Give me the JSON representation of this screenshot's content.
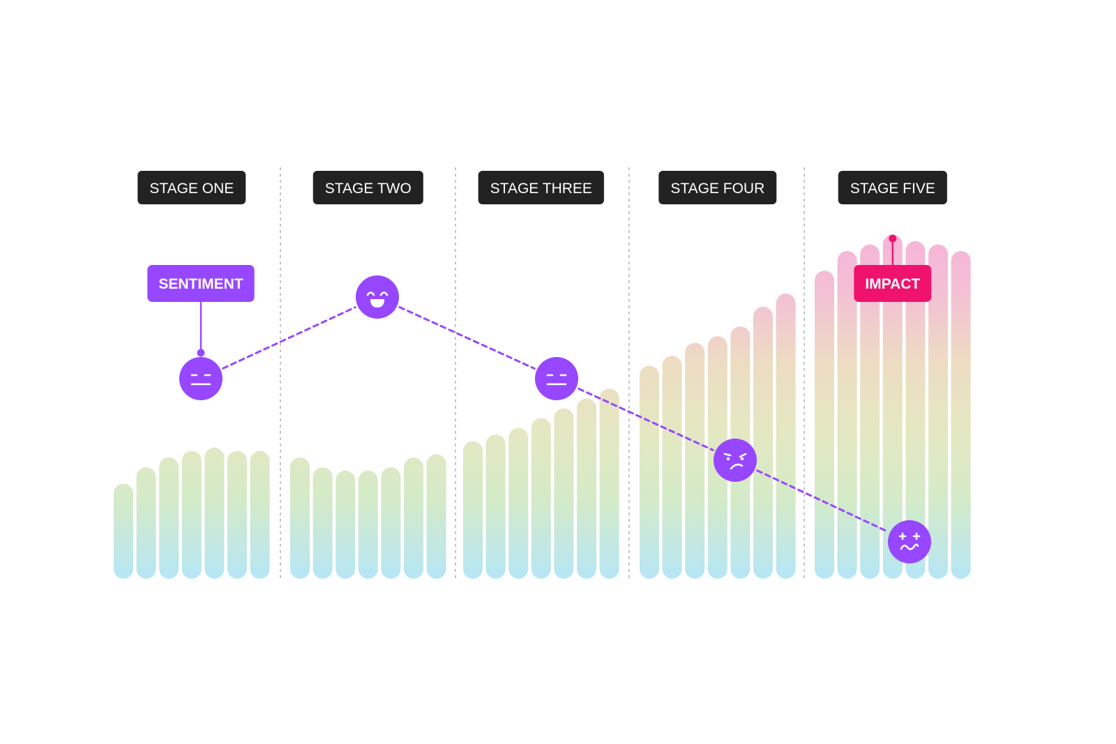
{
  "chart_data": {
    "type": "bar",
    "title": "",
    "xlabel": "",
    "ylabel": "",
    "grid": false,
    "stages": [
      {
        "label": "STAGE ONE",
        "values": [
          29,
          34,
          37,
          39,
          40,
          39,
          39
        ]
      },
      {
        "label": "STAGE TWO",
        "values": [
          37,
          34,
          33,
          33,
          34,
          37,
          38
        ]
      },
      {
        "label": "STAGE THREE",
        "values": [
          42,
          44,
          46,
          49,
          52,
          55,
          58
        ]
      },
      {
        "label": "STAGE FOUR",
        "values": [
          65,
          68,
          72,
          74,
          77,
          83,
          87
        ]
      },
      {
        "label": "STAGE FIVE",
        "values": [
          94,
          100,
          102,
          105,
          103,
          102,
          100
        ]
      }
    ],
    "ylim": [
      0,
      100
    ],
    "sentiment": {
      "label": "SENTIMENT",
      "points": [
        {
          "stage": "STAGE ONE",
          "face": "neutral-face",
          "level": 2
        },
        {
          "stage": "STAGE TWO",
          "face": "happy-face",
          "level": 3
        },
        {
          "stage": "STAGE THREE",
          "face": "neutral-face",
          "level": 2
        },
        {
          "stage": "STAGE FOUR",
          "face": "frustrated-face",
          "level": 1
        },
        {
          "stage": "STAGE FIVE",
          "face": "dizzy-face",
          "level": 0
        }
      ]
    },
    "impact_label": "IMPACT"
  },
  "colors": {
    "stage_badge": "#222222",
    "sentiment": "#9747FF",
    "impact": "#F0136E",
    "bar_bottom": "#B6E6F6",
    "bar_mid": "#DDE8C6",
    "bar_upper": "#EDD9C0",
    "bar_top": "#F6B3D9",
    "divider": "#C4C4C4"
  }
}
